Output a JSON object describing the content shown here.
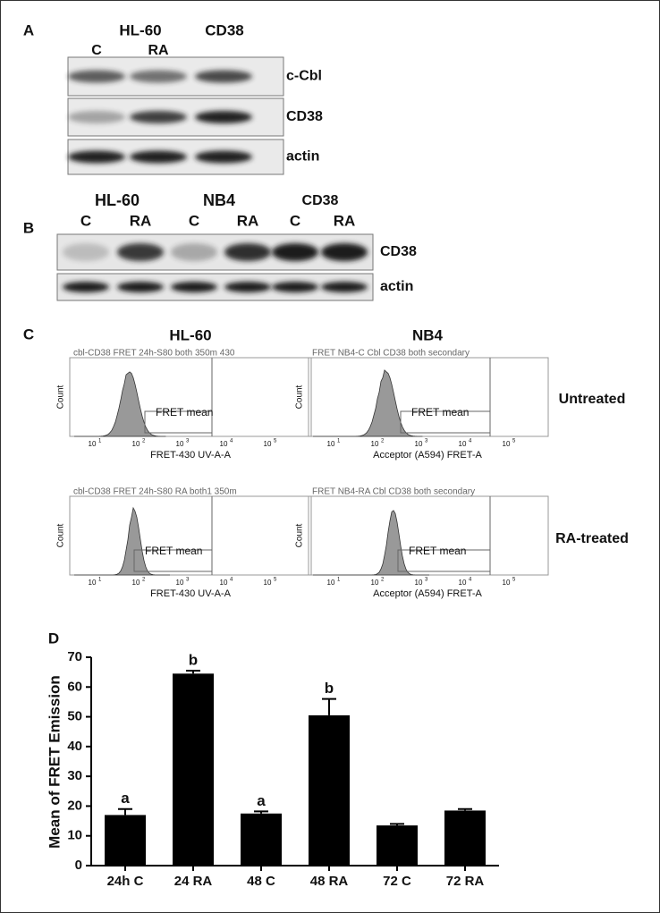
{
  "panel_a": {
    "label": "A",
    "headers": [
      "HL-60",
      "CD38"
    ],
    "lanes": [
      "C",
      "RA"
    ],
    "rows": [
      "c-Cbl",
      "CD38",
      "actin"
    ]
  },
  "panel_b": {
    "label": "B",
    "groups": [
      "HL-60",
      "NB4",
      "CD38"
    ],
    "lanes": [
      "C",
      "RA",
      "C",
      "RA",
      "C",
      "RA"
    ],
    "rows": [
      "CD38",
      "actin"
    ]
  },
  "panel_c": {
    "label": "C",
    "columns": [
      {
        "title": "HL-60",
        "xlabel": "FRET-430 UV-A-A",
        "headers": [
          "cbl-CD38 FRET 24h-S80 both 350m 430",
          "cbl-CD38 FRET 24h-S80 RA both1 350m"
        ]
      },
      {
        "title": "NB4",
        "xlabel": "Acceptor (A594) FRET-A",
        "headers": [
          "FRET NB4-C Cbl CD38 both secondary",
          "FRET NB4-RA Cbl CD38 both secondary"
        ]
      }
    ],
    "rows": [
      "Untreated",
      "RA-treated"
    ],
    "gate_label": "FRET mean",
    "ylabel": "Count",
    "xtick_base": "10",
    "xtick_exponents": [
      "1",
      "2",
      "3",
      "4",
      "5"
    ]
  },
  "chart_data": {
    "type": "bar",
    "panel_label": "D",
    "ylabel": "Mean of FRET Emission",
    "categories": [
      "24h C",
      "24 RA",
      "48 C",
      "48 RA",
      "72 C",
      "72 RA"
    ],
    "values": [
      17,
      64.5,
      17.5,
      50.5,
      13.5,
      18.5
    ],
    "errors": [
      2,
      1,
      0.7,
      5.5,
      0.5,
      0.5
    ],
    "annotations": [
      "a",
      "b",
      "a",
      "b",
      null,
      null
    ],
    "color": "#000000",
    "ylim": [
      0,
      70
    ],
    "yticks": [
      0,
      10,
      20,
      30,
      40,
      50,
      60,
      70
    ]
  }
}
